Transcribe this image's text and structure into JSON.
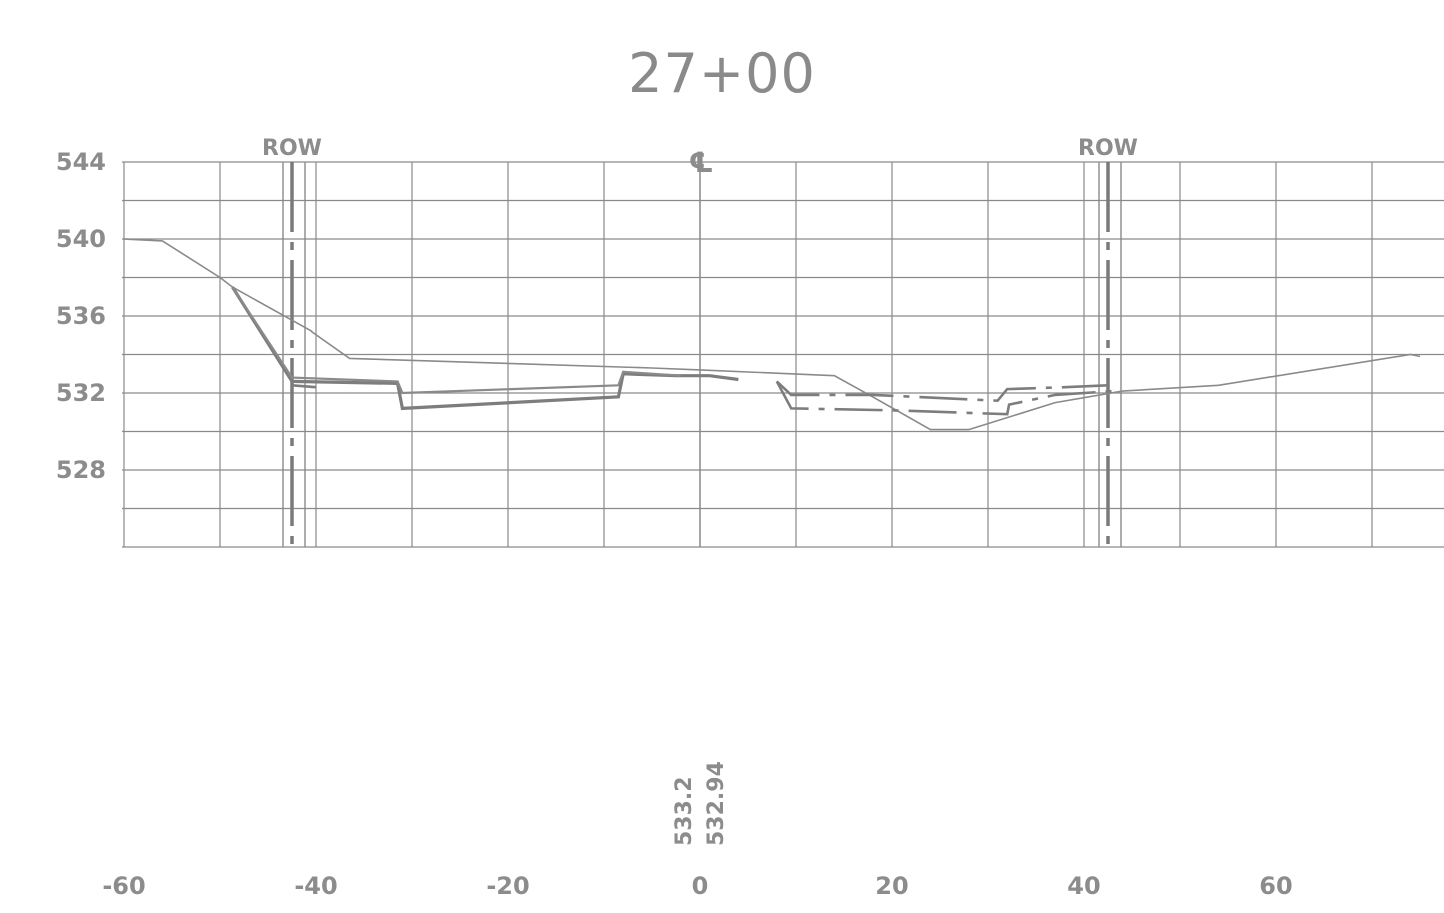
{
  "title": "27+00",
  "chart_data": {
    "type": "line",
    "title": "27+00",
    "xlabel": "",
    "ylabel": "",
    "xlim": [
      -60,
      78
    ],
    "ylim": [
      524,
      544
    ],
    "x_ticks": [
      "-60",
      "-40",
      "-20",
      "0",
      "20",
      "40",
      "60"
    ],
    "y_ticks": [
      "544",
      "540",
      "536",
      "532",
      "528"
    ],
    "grid": true,
    "vertical_markers": [
      {
        "label": "ROW",
        "x": -42.5
      },
      {
        "label": "℄",
        "x": 0
      },
      {
        "label": "ROW",
        "x": 42.5
      }
    ],
    "centerline_annotations": [
      "533.2",
      "532.94"
    ],
    "series": [
      {
        "style": "solid-thin",
        "points": [
          [
            -60,
            540
          ],
          [
            -56,
            539.9
          ],
          [
            -50,
            538
          ],
          [
            -48.7,
            537.5
          ],
          [
            -41.5,
            535.5
          ],
          [
            -40.4,
            535.2
          ]
        ]
      },
      {
        "style": "solid-thin",
        "points": [
          [
            -40.5,
            535.2
          ],
          [
            -36.5,
            533.8
          ],
          [
            -5,
            533.3
          ],
          [
            0,
            533.2
          ],
          [
            14,
            532.9
          ],
          [
            18,
            531.8
          ],
          [
            24,
            530.1
          ],
          [
            28,
            530.1
          ],
          [
            37,
            531.5
          ],
          [
            44,
            532.1
          ],
          [
            54,
            532.4
          ],
          [
            74,
            534
          ],
          [
            75,
            533.9
          ]
        ]
      },
      {
        "style": "solid-thick",
        "points": [
          [
            -48.7,
            537.5
          ],
          [
            -42.5,
            532.6
          ],
          [
            -31.5,
            532.5
          ],
          [
            -31,
            531.2
          ],
          [
            -8.5,
            531.8
          ],
          [
            -8,
            533
          ],
          [
            -2.5,
            532.9
          ],
          [
            1,
            532.9
          ],
          [
            4,
            532.7
          ]
        ]
      },
      {
        "style": "solid-medium",
        "points": [
          [
            -48.7,
            537.5
          ],
          [
            -42.5,
            532.8
          ],
          [
            -31.5,
            532.6
          ],
          [
            -31,
            532
          ],
          [
            -8.5,
            532.4
          ],
          [
            -8,
            533.1
          ],
          [
            -2,
            532.9
          ]
        ]
      },
      {
        "style": "dashed",
        "points": [
          [
            -42.5,
            532.4
          ],
          [
            -40,
            532.3
          ]
        ]
      },
      {
        "style": "dashed",
        "points": [
          [
            8,
            532.6
          ],
          [
            9.5,
            531.9
          ],
          [
            18,
            531.9
          ],
          [
            31,
            531.6
          ],
          [
            32,
            532.2
          ],
          [
            38,
            532.3
          ],
          [
            42.5,
            532.4
          ]
        ]
      },
      {
        "style": "dashed",
        "points": [
          [
            8,
            532.6
          ],
          [
            9.5,
            531.2
          ],
          [
            20,
            531.1
          ],
          [
            32,
            530.9
          ],
          [
            32.2,
            531.4
          ],
          [
            37,
            531.9
          ],
          [
            43,
            532.1
          ]
        ]
      }
    ]
  }
}
